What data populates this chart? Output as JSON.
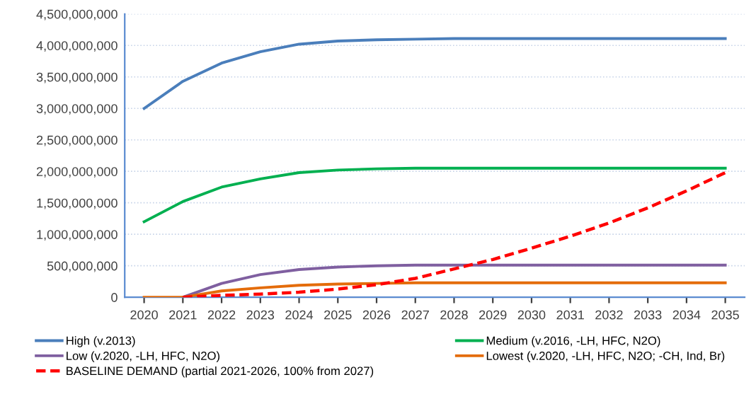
{
  "chart_data": {
    "type": "line",
    "categories": [
      "2020",
      "2021",
      "2022",
      "2023",
      "2024",
      "2025",
      "2026",
      "2027",
      "2028",
      "2029",
      "2030",
      "2031",
      "2032",
      "2033",
      "2034",
      "2035"
    ],
    "series": [
      {
        "name": "High (v.2013)",
        "color": "#4a7ebb",
        "values": [
          3000000000,
          3430000000,
          3720000000,
          3900000000,
          4020000000,
          4070000000,
          4090000000,
          4100000000,
          4110000000,
          4110000000,
          4110000000,
          4110000000,
          4110000000,
          4110000000,
          4110000000,
          4110000000
        ]
      },
      {
        "name": "Medium (v.2016, -LH, HFC, N2O)",
        "color": "#00b050",
        "values": [
          1200000000,
          1520000000,
          1750000000,
          1880000000,
          1980000000,
          2020000000,
          2040000000,
          2050000000,
          2050000000,
          2050000000,
          2050000000,
          2050000000,
          2050000000,
          2050000000,
          2050000000,
          2050000000
        ]
      },
      {
        "name": "Low (v.2020, -LH, HFC, N2O)",
        "color": "#7f5fa0",
        "values": [
          null,
          0,
          220000000,
          360000000,
          440000000,
          480000000,
          500000000,
          510000000,
          510000000,
          510000000,
          510000000,
          510000000,
          510000000,
          510000000,
          510000000,
          510000000
        ]
      },
      {
        "name": "Lowest (v.2020, -LH, HFC, N2O; -CH, Ind, Br)",
        "color": "#e46c0a",
        "values": [
          0,
          0,
          100000000,
          150000000,
          190000000,
          210000000,
          220000000,
          230000000,
          230000000,
          230000000,
          230000000,
          230000000,
          230000000,
          230000000,
          230000000,
          230000000
        ]
      },
      {
        "name": "BASELINE DEMAND (partial 2021-2026, 100% from 2027)",
        "color": "#ff0000",
        "line_style": "dashed",
        "values": [
          null,
          0,
          30000000,
          50000000,
          80000000,
          130000000,
          200000000,
          300000000,
          450000000,
          600000000,
          780000000,
          970000000,
          1180000000,
          1420000000,
          1690000000,
          1980000000
        ]
      }
    ],
    "ylim": [
      0,
      4500000000
    ],
    "yticks": [
      0,
      {
        "value": 500000000,
        "label": "500,000,000"
      },
      {
        "value": 1000000000,
        "label": "1,000,000,000"
      },
      {
        "value": 1500000000,
        "label": "1,500,000,000"
      },
      {
        "value": 2000000000,
        "label": "2,000,000,000"
      },
      {
        "value": 2500000000,
        "label": "2,500,000,000"
      },
      {
        "value": 3000000000,
        "label": "3,000,000,000"
      },
      {
        "value": 3500000000,
        "label": "3,500,000,000"
      },
      {
        "value": 4000000000,
        "label": "4,000,000,000"
      },
      {
        "value": 4500000000,
        "label": "4,500,000,000"
      }
    ],
    "grid": "y",
    "legend": "bottom",
    "line_style": "solid"
  }
}
